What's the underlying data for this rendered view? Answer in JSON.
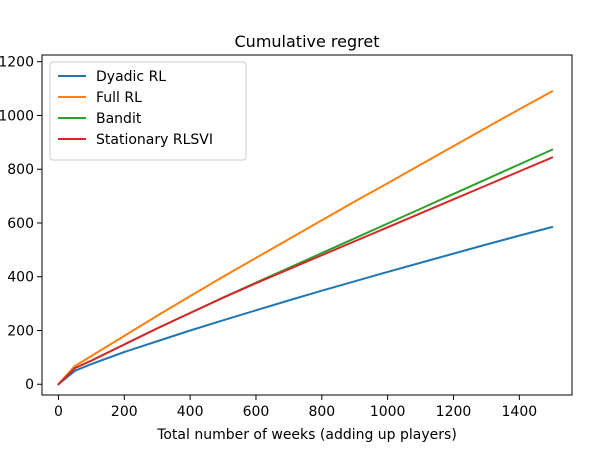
{
  "chart_data": {
    "type": "line",
    "title": "Cumulative regret",
    "xlabel": "Total number of weeks (adding up players)",
    "ylabel": "",
    "xlim": [
      -50,
      1560
    ],
    "ylim": [
      -40,
      1225
    ],
    "xticks": [
      0,
      200,
      400,
      600,
      800,
      1000,
      1200,
      1400
    ],
    "yticks": [
      0,
      200,
      400,
      600,
      800,
      1000,
      1200
    ],
    "grid": false,
    "legend_position": "top-left",
    "x": [
      0,
      50,
      100,
      200,
      300,
      400,
      500,
      600,
      700,
      800,
      900,
      1000,
      1100,
      1200,
      1300,
      1400,
      1500
    ],
    "series": [
      {
        "name": "Dyadic RL",
        "color": "#1f77b4",
        "values": [
          0,
          50,
          75,
          120,
          160,
          200,
          238,
          275,
          312,
          348,
          383,
          418,
          452,
          486,
          520,
          553,
          585
        ]
      },
      {
        "name": "Full RL",
        "color": "#ff7f0e",
        "values": [
          0,
          68,
          105,
          180,
          255,
          328,
          400,
          470,
          540,
          610,
          680,
          748,
          817,
          886,
          955,
          1023,
          1090
        ]
      },
      {
        "name": "Bandit",
        "color": "#2ca02c",
        "values": [
          0,
          60,
          88,
          148,
          208,
          265,
          322,
          378,
          433,
          488,
          543,
          598,
          653,
          708,
          763,
          818,
          873
        ]
      },
      {
        "name": "Stationary RLSVI",
        "color": "#d62728",
        "values": [
          0,
          60,
          88,
          148,
          208,
          265,
          322,
          376,
          428,
          480,
          532,
          584,
          636,
          688,
          740,
          792,
          844
        ]
      }
    ]
  }
}
